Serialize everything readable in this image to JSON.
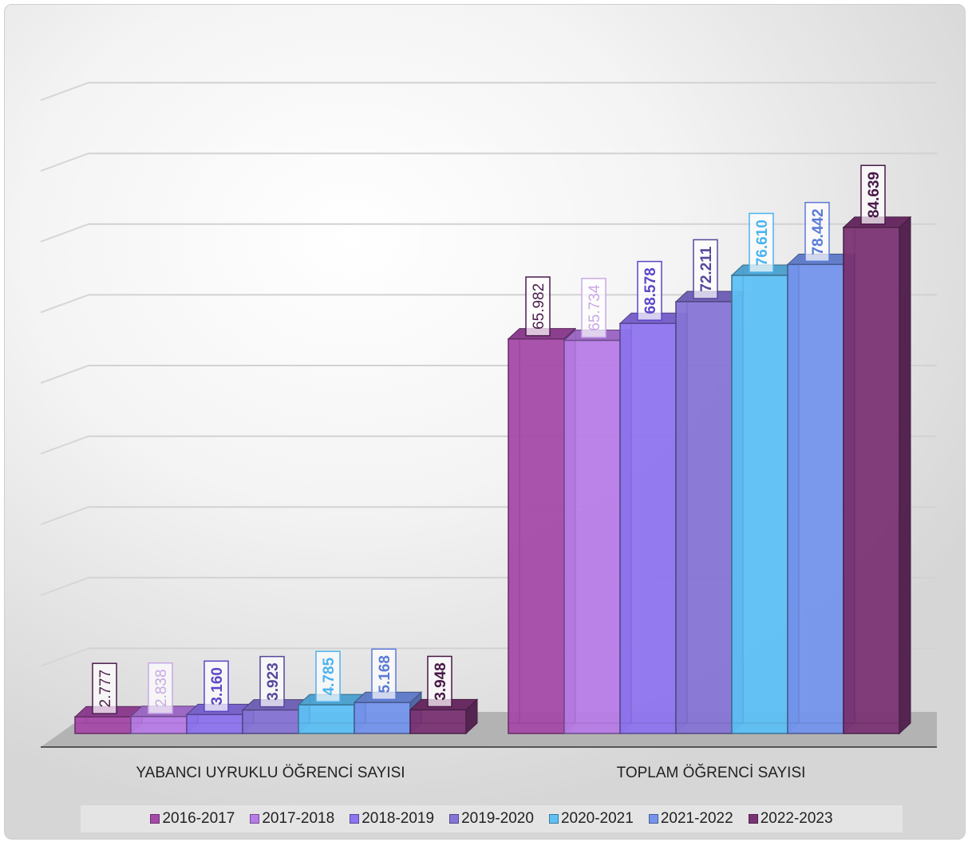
{
  "chart_data": {
    "type": "bar",
    "categories": [
      "YABANCI UYRUKLU ÖĞRENCİ SAYISI",
      "TOPLAM ÖĞRENCİ SAYISI"
    ],
    "series": [
      {
        "name": "2016-2017",
        "values": [
          2777,
          65982
        ],
        "labels": [
          "2.777",
          "65.982"
        ],
        "color": "#a54aa8",
        "label_color": "#4a1d4c",
        "bold": false
      },
      {
        "name": "2017-2018",
        "values": [
          2838,
          65734
        ],
        "labels": [
          "2.838",
          "65.734"
        ],
        "color": "#b77ce6",
        "label_color": "#c9a8e8",
        "bold": false
      },
      {
        "name": "2018-2019",
        "values": [
          3160,
          68578
        ],
        "labels": [
          "3.160",
          "68.578"
        ],
        "color": "#8e74ef",
        "label_color": "#5b47c9",
        "bold": true
      },
      {
        "name": "2019-2020",
        "values": [
          3923,
          72211
        ],
        "labels": [
          "3.923",
          "72.211"
        ],
        "color": "#8675d6",
        "label_color": "#56479c",
        "bold": true
      },
      {
        "name": "2020-2021",
        "values": [
          4785,
          76610
        ],
        "labels": [
          "4.785",
          "76.610"
        ],
        "color": "#5ec0f4",
        "label_color": "#4ab4ef",
        "bold": true
      },
      {
        "name": "2021-2022",
        "values": [
          5168,
          78442
        ],
        "labels": [
          "5.168",
          "78.442"
        ],
        "color": "#7494ec",
        "label_color": "#5a7ad8",
        "bold": true
      },
      {
        "name": "2022-2023",
        "values": [
          3948,
          84639
        ],
        "labels": [
          "3.948",
          "84.639"
        ],
        "color": "#7a3474",
        "label_color": "#4a1848",
        "bold": true
      }
    ],
    "title": "",
    "xlabel": "",
    "ylabel": "",
    "ylim": [
      0,
      100000
    ],
    "grid": true,
    "legend_position": "bottom"
  }
}
